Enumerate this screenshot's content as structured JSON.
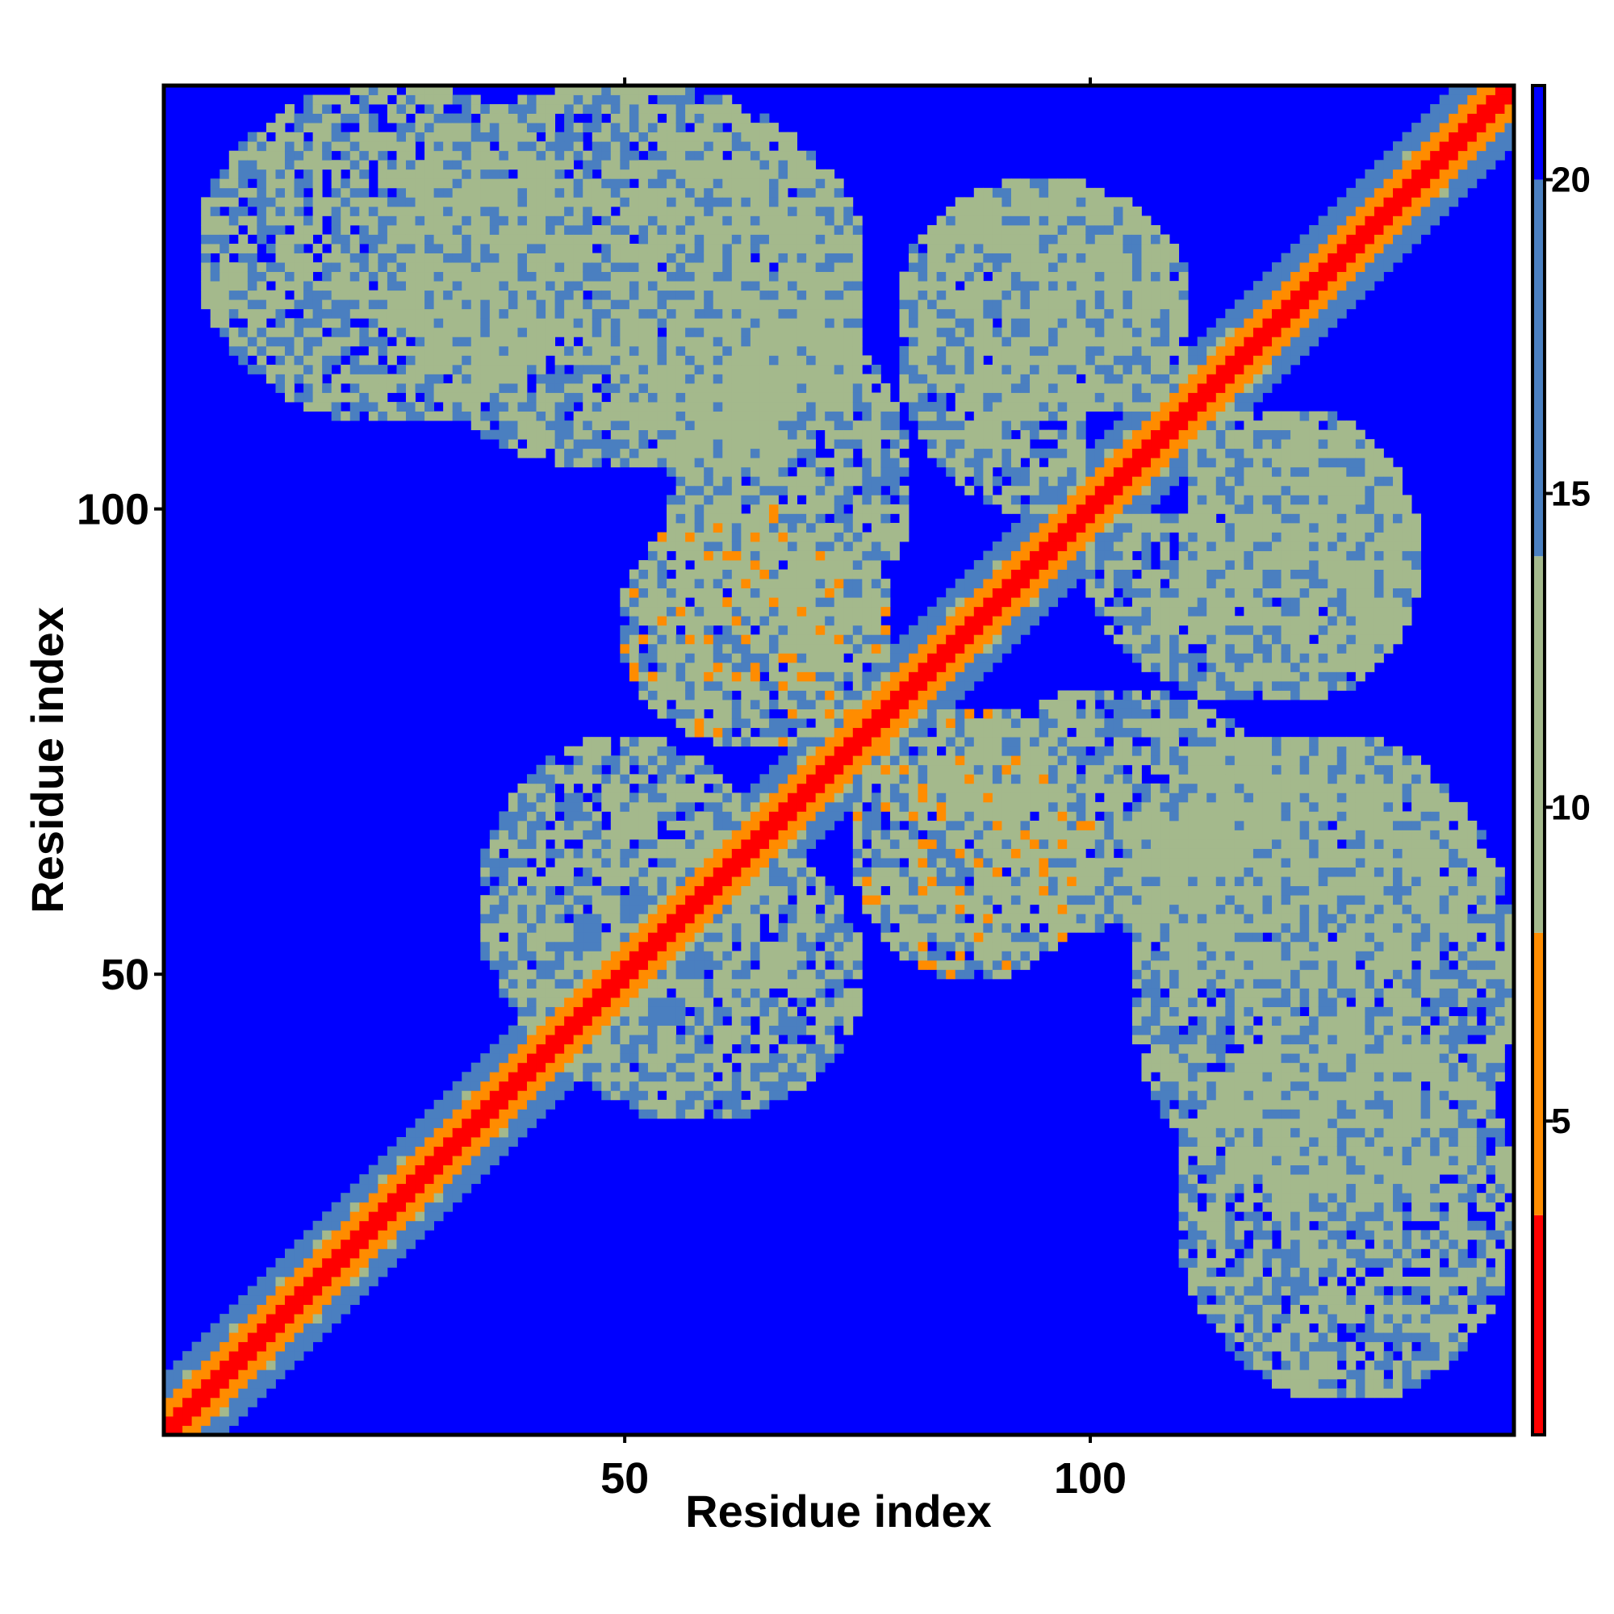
{
  "chart_data": {
    "type": "heatmap",
    "title": "",
    "xlabel": "Residue index",
    "ylabel": "Residue index",
    "n_residues": 145,
    "xlim": [
      1,
      145
    ],
    "ylim": [
      1,
      145
    ],
    "x_ticks": [
      50,
      100
    ],
    "y_ticks": [
      50,
      100
    ],
    "colorbar": {
      "ticks": [
        5,
        10,
        15,
        20
      ],
      "range": [
        0,
        21.5
      ],
      "colors": [
        "#ff0000",
        "#ff8c00",
        "#a4b98c",
        "#4a7fc0",
        "#0000ff"
      ]
    },
    "matrix_description": "symmetric residue distance map, near-diagonal band low (red), off-diagonal contact regions mid (yellow-green), background high (blue)",
    "contact_regions": [
      {
        "x": [
          5,
          45
        ],
        "y": [
          110,
          145
        ],
        "level": 12
      },
      {
        "x": [
          48,
          75
        ],
        "y": [
          105,
          140
        ],
        "level": 13
      },
      {
        "x": [
          50,
          78
        ],
        "y": [
          75,
          100
        ],
        "level": 11
      },
      {
        "x": [
          35,
          65
        ],
        "y": [
          40,
          75
        ],
        "level": 12
      },
      {
        "x": [
          80,
          110
        ],
        "y": [
          110,
          135
        ],
        "level": 12
      },
      {
        "x": [
          85,
          120
        ],
        "y": [
          55,
          80
        ],
        "level": 12
      },
      {
        "x": [
          100,
          135
        ],
        "y": [
          80,
          110
        ],
        "level": 12
      },
      {
        "x": [
          105,
          145
        ],
        "y": [
          25,
          75
        ],
        "level": 12
      }
    ]
  }
}
